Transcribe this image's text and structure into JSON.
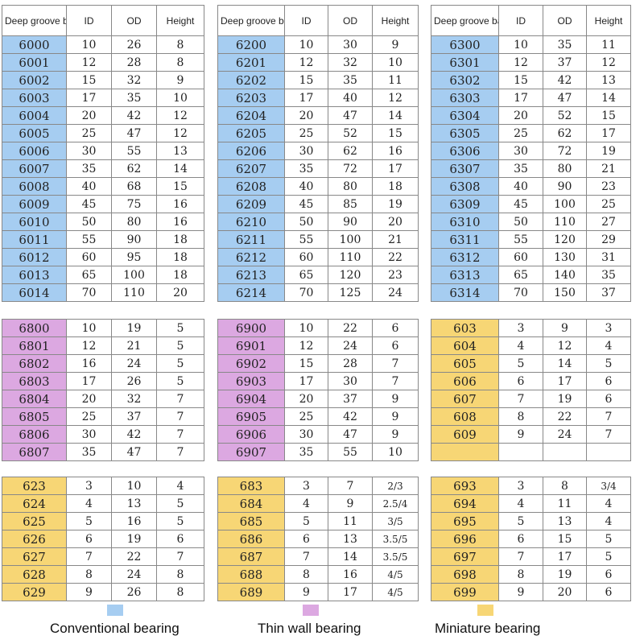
{
  "headers": {
    "model": "Deep groove ball bearing",
    "id": "ID",
    "od": "OD",
    "height": "Height"
  },
  "colors": {
    "conventional": "#a6cdf1",
    "thin_wall": "#dca8e1",
    "miniature": "#f7d675"
  },
  "sections": [
    {
      "key": "top",
      "panels": [
        {
          "category": "conventional",
          "header": true,
          "rows": [
            [
              "6000",
              "10",
              "26",
              "8"
            ],
            [
              "6001",
              "12",
              "28",
              "8"
            ],
            [
              "6002",
              "15",
              "32",
              "9"
            ],
            [
              "6003",
              "17",
              "35",
              "10"
            ],
            [
              "6004",
              "20",
              "42",
              "12"
            ],
            [
              "6005",
              "25",
              "47",
              "12"
            ],
            [
              "6006",
              "30",
              "55",
              "13"
            ],
            [
              "6007",
              "35",
              "62",
              "14"
            ],
            [
              "6008",
              "40",
              "68",
              "15"
            ],
            [
              "6009",
              "45",
              "75",
              "16"
            ],
            [
              "6010",
              "50",
              "80",
              "16"
            ],
            [
              "6011",
              "55",
              "90",
              "18"
            ],
            [
              "6012",
              "60",
              "95",
              "18"
            ],
            [
              "6013",
              "65",
              "100",
              "18"
            ],
            [
              "6014",
              "70",
              "110",
              "20"
            ]
          ]
        },
        {
          "category": "conventional",
          "header": true,
          "rows": [
            [
              "6200",
              "10",
              "30",
              "9"
            ],
            [
              "6201",
              "12",
              "32",
              "10"
            ],
            [
              "6202",
              "15",
              "35",
              "11"
            ],
            [
              "6203",
              "17",
              "40",
              "12"
            ],
            [
              "6204",
              "20",
              "47",
              "14"
            ],
            [
              "6205",
              "25",
              "52",
              "15"
            ],
            [
              "6206",
              "30",
              "62",
              "16"
            ],
            [
              "6207",
              "35",
              "72",
              "17"
            ],
            [
              "6208",
              "40",
              "80",
              "18"
            ],
            [
              "6209",
              "45",
              "85",
              "19"
            ],
            [
              "6210",
              "50",
              "90",
              "20"
            ],
            [
              "6211",
              "55",
              "100",
              "21"
            ],
            [
              "6212",
              "60",
              "110",
              "22"
            ],
            [
              "6213",
              "65",
              "120",
              "23"
            ],
            [
              "6214",
              "70",
              "125",
              "24"
            ]
          ]
        },
        {
          "category": "conventional",
          "header": true,
          "rows": [
            [
              "6300",
              "10",
              "35",
              "11"
            ],
            [
              "6301",
              "12",
              "37",
              "12"
            ],
            [
              "6302",
              "15",
              "42",
              "13"
            ],
            [
              "6303",
              "17",
              "47",
              "14"
            ],
            [
              "6304",
              "20",
              "52",
              "15"
            ],
            [
              "6305",
              "25",
              "62",
              "17"
            ],
            [
              "6306",
              "30",
              "72",
              "19"
            ],
            [
              "6307",
              "35",
              "80",
              "21"
            ],
            [
              "6308",
              "40",
              "90",
              "23"
            ],
            [
              "6309",
              "45",
              "100",
              "25"
            ],
            [
              "6310",
              "50",
              "110",
              "27"
            ],
            [
              "6311",
              "55",
              "120",
              "29"
            ],
            [
              "6312",
              "60",
              "130",
              "31"
            ],
            [
              "6313",
              "65",
              "140",
              "35"
            ],
            [
              "6314",
              "70",
              "150",
              "37"
            ]
          ]
        }
      ]
    },
    {
      "key": "middle",
      "panels": [
        {
          "category": "thin_wall",
          "header": false,
          "rows": [
            [
              "6800",
              "10",
              "19",
              "5"
            ],
            [
              "6801",
              "12",
              "21",
              "5"
            ],
            [
              "6802",
              "16",
              "24",
              "5"
            ],
            [
              "6803",
              "17",
              "26",
              "5"
            ],
            [
              "6804",
              "20",
              "32",
              "7"
            ],
            [
              "6805",
              "25",
              "37",
              "7"
            ],
            [
              "6806",
              "30",
              "42",
              "7"
            ],
            [
              "6807",
              "35",
              "47",
              "7"
            ]
          ]
        },
        {
          "category": "thin_wall",
          "header": false,
          "rows": [
            [
              "6900",
              "10",
              "22",
              "6"
            ],
            [
              "6901",
              "12",
              "24",
              "6"
            ],
            [
              "6902",
              "15",
              "28",
              "7"
            ],
            [
              "6903",
              "17",
              "30",
              "7"
            ],
            [
              "6904",
              "20",
              "37",
              "9"
            ],
            [
              "6905",
              "25",
              "42",
              "9"
            ],
            [
              "6906",
              "30",
              "47",
              "9"
            ],
            [
              "6907",
              "35",
              "55",
              "10"
            ]
          ]
        },
        {
          "category": "miniature",
          "header": false,
          "rows": [
            [
              "603",
              "3",
              "9",
              "3"
            ],
            [
              "604",
              "4",
              "12",
              "4"
            ],
            [
              "605",
              "5",
              "14",
              "5"
            ],
            [
              "606",
              "6",
              "17",
              "6"
            ],
            [
              "607",
              "7",
              "19",
              "6"
            ],
            [
              "608",
              "8",
              "22",
              "7"
            ],
            [
              "609",
              "9",
              "24",
              "7"
            ],
            [
              "",
              "",
              "",
              ""
            ]
          ]
        }
      ]
    },
    {
      "key": "bottom",
      "panels": [
        {
          "category": "miniature",
          "header": false,
          "rows": [
            [
              "623",
              "3",
              "10",
              "4"
            ],
            [
              "624",
              "4",
              "13",
              "5"
            ],
            [
              "625",
              "5",
              "16",
              "5"
            ],
            [
              "626",
              "6",
              "19",
              "6"
            ],
            [
              "627",
              "7",
              "22",
              "7"
            ],
            [
              "628",
              "8",
              "24",
              "8"
            ],
            [
              "629",
              "9",
              "26",
              "8"
            ]
          ]
        },
        {
          "category": "miniature",
          "header": false,
          "rows": [
            [
              "683",
              "3",
              "7",
              "2/3"
            ],
            [
              "684",
              "4",
              "9",
              "2.5/4"
            ],
            [
              "685",
              "5",
              "11",
              "3/5"
            ],
            [
              "686",
              "6",
              "13",
              "3.5/5"
            ],
            [
              "687",
              "7",
              "14",
              "3.5/5"
            ],
            [
              "688",
              "8",
              "16",
              "4/5"
            ],
            [
              "689",
              "9",
              "17",
              "4/5"
            ]
          ]
        },
        {
          "category": "miniature",
          "header": false,
          "rows": [
            [
              "693",
              "3",
              "8",
              "3/4"
            ],
            [
              "694",
              "4",
              "11",
              "4"
            ],
            [
              "695",
              "5",
              "13",
              "4"
            ],
            [
              "696",
              "6",
              "15",
              "5"
            ],
            [
              "697",
              "7",
              "17",
              "5"
            ],
            [
              "698",
              "8",
              "19",
              "6"
            ],
            [
              "699",
              "9",
              "20",
              "6"
            ]
          ]
        }
      ]
    }
  ],
  "legend": [
    {
      "label": "Conventional bearing",
      "color_key": "conventional"
    },
    {
      "label": "Thin wall bearing",
      "color_key": "thin_wall"
    },
    {
      "label": "Miniature bearing",
      "color_key": "miniature"
    }
  ]
}
